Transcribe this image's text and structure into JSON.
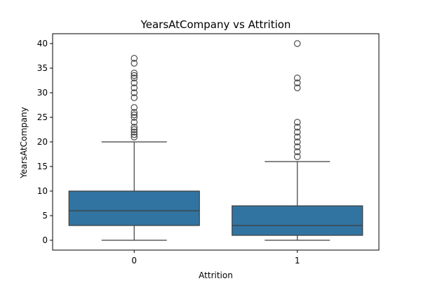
{
  "chart_data": {
    "type": "boxplot",
    "title": "YearsAtCompany vs Attrition",
    "xlabel": "Attrition",
    "ylabel": "YearsAtCompany",
    "ylim": [
      -2,
      42
    ],
    "yticks": [
      0,
      5,
      10,
      15,
      20,
      25,
      30,
      35,
      40
    ],
    "categories": [
      "0",
      "1"
    ],
    "box_color": "#3274a1",
    "line_color": "#3d3d3d",
    "boxes": [
      {
        "category": "0",
        "whisker_low": 0,
        "q1": 3,
        "median": 6,
        "q3": 10,
        "whisker_high": 20,
        "outliers": [
          21,
          21.5,
          22,
          22.5,
          23,
          24,
          25,
          25.5,
          26,
          27,
          29,
          30,
          31,
          32,
          33,
          33.5,
          34,
          36,
          37
        ]
      },
      {
        "category": "1",
        "whisker_low": 0,
        "q1": 1,
        "median": 3,
        "q3": 7,
        "whisker_high": 16,
        "outliers": [
          17,
          18,
          19,
          20,
          21,
          22,
          23,
          24,
          31,
          32,
          33,
          40
        ]
      }
    ]
  }
}
